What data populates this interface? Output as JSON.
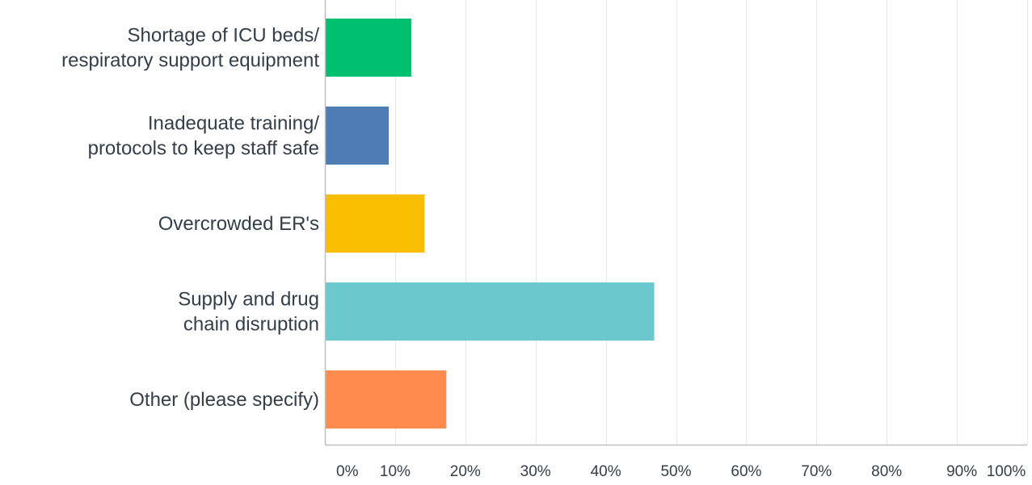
{
  "chart_data": {
    "type": "bar",
    "orientation": "horizontal",
    "categories": [
      [
        "Shortage of ICU beds/",
        "respiratory support equipment"
      ],
      [
        "Inadequate training/",
        "protocols to keep staff safe"
      ],
      [
        "Overcrowded ER's"
      ],
      [
        "Supply and drug",
        "chain disruption"
      ],
      [
        "Other (please specify)"
      ]
    ],
    "values": [
      12.3,
      9.1,
      14.2,
      46.9,
      17.3
    ],
    "colors": [
      "#00bf6f",
      "#507cb6",
      "#f9be00",
      "#6bc8cd",
      "#ff8b4f"
    ],
    "xlim": [
      0,
      100
    ],
    "xticks": [
      "0%",
      "10%",
      "20%",
      "30%",
      "40%",
      "50%",
      "60%",
      "70%",
      "80%",
      "90%",
      "100%"
    ],
    "grid": true,
    "axis_color": "#bfbfbf",
    "grid_color": "#e8e8e8",
    "text_color": "#333e48"
  }
}
